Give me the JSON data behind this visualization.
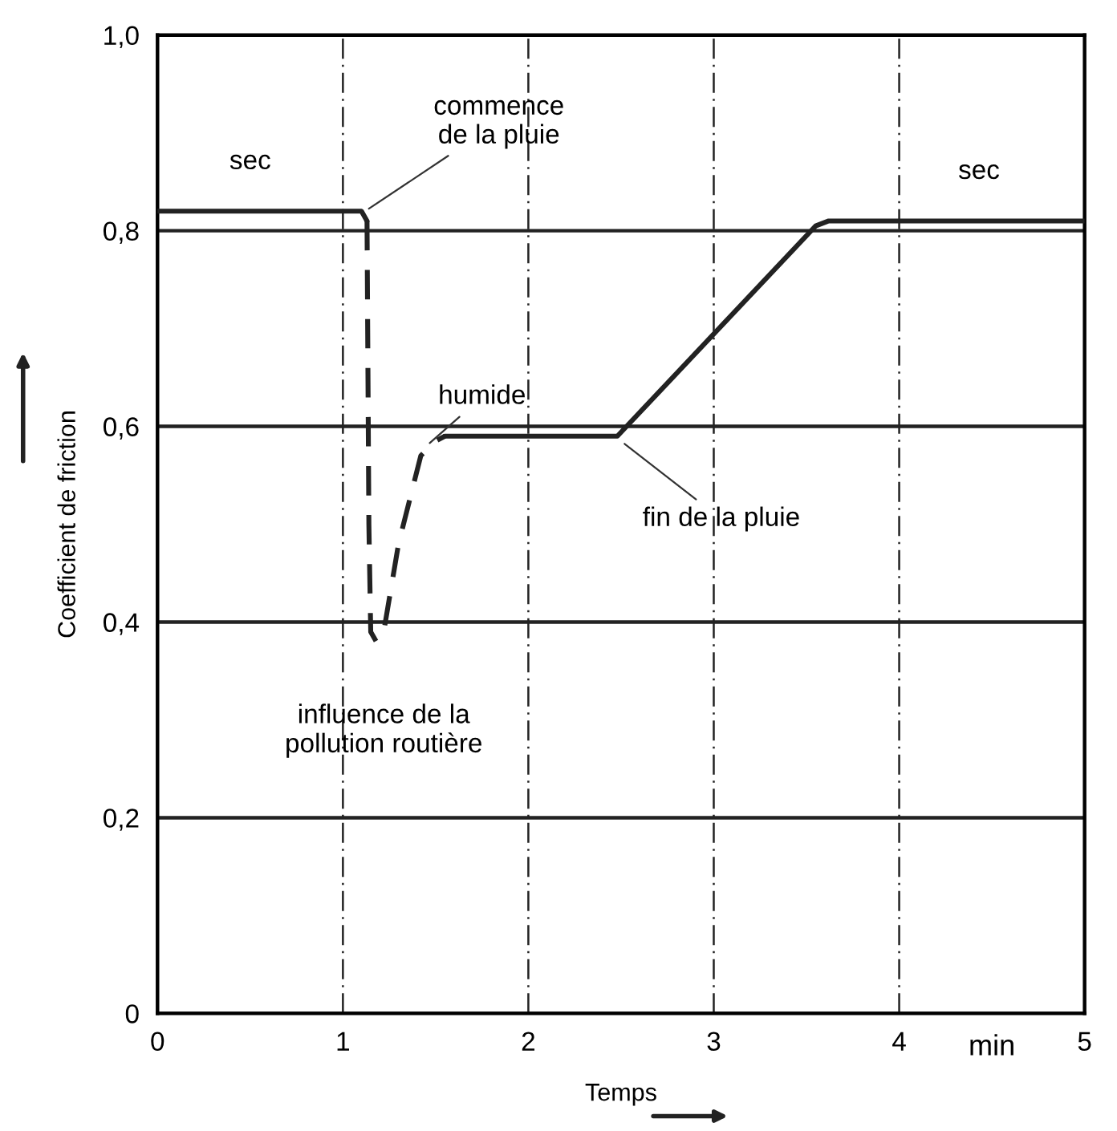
{
  "chart_data": {
    "type": "line",
    "xlabel": "Temps",
    "ylabel": "Coefficient de friction",
    "series": [
      {
        "color": "#222222",
        "line_style": "solid",
        "x": [
          0,
          1.1,
          1.13,
          1.5,
          1.55,
          2.48,
          3.55,
          3.62,
          5
        ],
        "values": [
          0.82,
          0.82,
          0.81,
          null,
          0.59,
          0.59,
          0.805,
          0.81,
          0.81
        ]
      },
      {
        "color": "#222222",
        "line_style": "dashed",
        "x": [
          1.13,
          1.14,
          1.15,
          1.18,
          1.22,
          1.3,
          1.42,
          1.5,
          1.55
        ],
        "values": [
          0.81,
          0.5,
          0.39,
          0.38,
          0.39,
          0.48,
          0.57,
          0.585,
          0.59
        ]
      }
    ],
    "xlim": [
      0,
      5
    ],
    "ylim": [
      0,
      1.0
    ],
    "xticks": [
      0,
      1,
      2,
      3,
      4,
      5
    ],
    "yticks": [
      0,
      {
        "value": 0.2,
        "label": "0,2"
      },
      {
        "value": 0.4,
        "label": "0,4"
      },
      {
        "value": 0.6,
        "label": "0,6"
      },
      {
        "value": 0.8,
        "label": "0,8"
      },
      {
        "value": 1.0,
        "label": "1,0"
      }
    ],
    "grid": true,
    "marker": "none",
    "annotations": [
      {
        "text": "sec",
        "x": 0.5,
        "y": 0.82
      },
      {
        "text": "commence\nde la pluie",
        "x": 1.12,
        "y": 0.82
      },
      {
        "text": "humide",
        "x": 1.45,
        "y": 0.58
      },
      {
        "text": "influence de la\npollution routière",
        "x": 1.16,
        "y": 0.38
      },
      {
        "text": "fin de la pluie",
        "x": 2.5,
        "y": 0.585
      },
      {
        "text": "sec",
        "x": 4.25,
        "y": 0.81
      },
      "min"
    ]
  }
}
